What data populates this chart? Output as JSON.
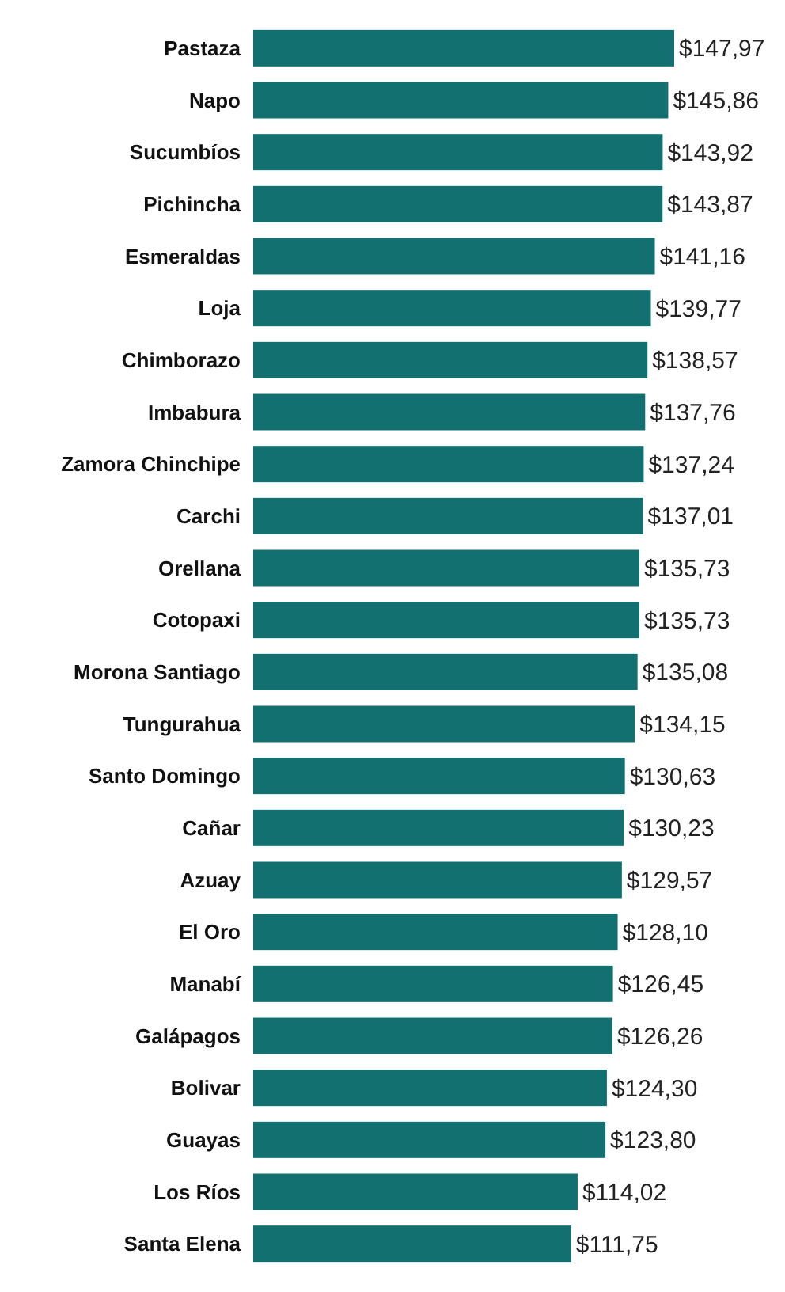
{
  "chart_data": {
    "type": "bar",
    "orientation": "horizontal",
    "categories": [
      "Pastaza",
      "Napo",
      "Sucumbíos",
      "Pichincha",
      "Esmeraldas",
      "Loja",
      "Chimborazo",
      "Imbabura",
      "Zamora Chinchipe",
      "Carchi",
      "Orellana",
      "Cotopaxi",
      "Morona Santiago",
      "Tungurahua",
      "Santo Domingo",
      "Cañar",
      "Azuay",
      "El Oro",
      "Manabí",
      "Galápagos",
      "Bolivar",
      "Guayas",
      "Los Ríos",
      "Santa Elena"
    ],
    "values": [
      147.97,
      145.86,
      143.92,
      143.87,
      141.16,
      139.77,
      138.57,
      137.76,
      137.24,
      137.01,
      135.73,
      135.73,
      135.08,
      134.15,
      130.63,
      130.23,
      129.57,
      128.1,
      126.45,
      126.26,
      124.3,
      123.8,
      114.02,
      111.75
    ],
    "color": "#137070",
    "value_labels": [
      "$147,97",
      "$145,86",
      "$143,92",
      "$143,87",
      "$141,16",
      "$139,77",
      "$138,57",
      "$137,76",
      "$137,24",
      "$137,01",
      "$135,73",
      "$135,73",
      "$135,08",
      "$134,15",
      "$130,63",
      "$130,23",
      "$129,57",
      "$128,10",
      "$126,45",
      "$126,26",
      "$124,30",
      "$123,80",
      "$114,02",
      "$111,75"
    ]
  }
}
